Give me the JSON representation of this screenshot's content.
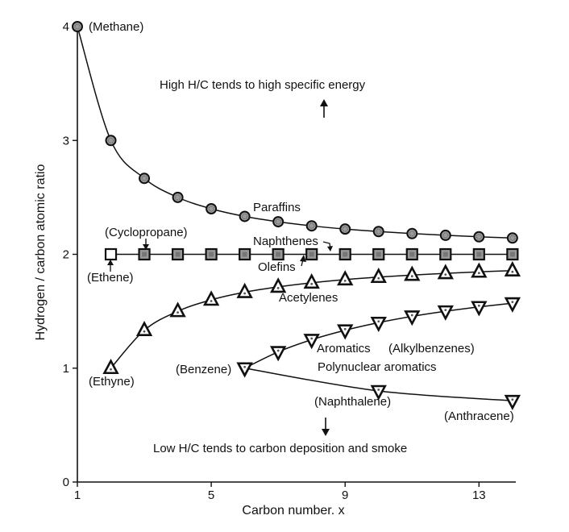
{
  "chart_data": {
    "type": "line",
    "title": "",
    "xlabel": "Carbon number. x",
    "ylabel": "Hydrogen / carbon atomic ratio",
    "xlim": [
      1,
      14.1
    ],
    "ylim": [
      0,
      4
    ],
    "xticks": [
      1,
      5,
      9,
      13
    ],
    "yticks": [
      0,
      1,
      2,
      3,
      4
    ],
    "grid": false,
    "series": [
      {
        "name": "Paraffins",
        "marker": "circle",
        "x": [
          1,
          2,
          3,
          4,
          5,
          6,
          7,
          8,
          9,
          10,
          11,
          12,
          13,
          14
        ],
        "y": [
          4.0,
          3.0,
          2.667,
          2.5,
          2.4,
          2.333,
          2.286,
          2.25,
          2.222,
          2.2,
          2.182,
          2.167,
          2.154,
          2.143
        ]
      },
      {
        "name": "Naphthenes / Olefins",
        "marker": "square",
        "x": [
          2,
          3,
          4,
          5,
          6,
          7,
          8,
          9,
          10,
          11,
          12,
          13,
          14
        ],
        "y": [
          2,
          2,
          2,
          2,
          2,
          2,
          2,
          2,
          2,
          2,
          2,
          2,
          2
        ]
      },
      {
        "name": "Acetylenes",
        "marker": "triangle-up",
        "x": [
          2,
          3,
          4,
          5,
          6,
          7,
          8,
          9,
          10,
          11,
          12,
          13,
          14
        ],
        "y": [
          1.0,
          1.333,
          1.5,
          1.6,
          1.667,
          1.714,
          1.75,
          1.778,
          1.8,
          1.818,
          1.833,
          1.846,
          1.857
        ]
      },
      {
        "name": "Aromatics (Alkylbenzenes)",
        "marker": "triangle-down",
        "x": [
          6,
          7,
          8,
          9,
          10,
          11,
          12,
          13,
          14
        ],
        "y": [
          1.0,
          1.143,
          1.25,
          1.333,
          1.4,
          1.455,
          1.5,
          1.538,
          1.571
        ]
      },
      {
        "name": "Polynuclear aromatics",
        "marker": "triangle-down",
        "x": [
          6,
          10,
          14
        ],
        "y": [
          1.0,
          0.8,
          0.714
        ]
      }
    ],
    "annotations": {
      "high": "High H/C tends to high specific energy",
      "low": "Low H/C tends to carbon deposition and smoke",
      "paraffins": "Paraffins",
      "naphthenes": "Naphthenes",
      "olefins": "Olefins",
      "acetylenes": "Acetylenes",
      "aromatics": "Aromatics",
      "alkylbenzenes": "(Alkylbenzenes)",
      "polynuclear": "Polynuclear aromatics",
      "methane": "(Methane)",
      "cyclopropane": "(Cyclopropane)",
      "ethene": "(Ethene)",
      "ethyne": "(Ethyne)",
      "benzene": "(Benzene)",
      "naphthalene": "(Naphthalene)",
      "anthracene": "(Anthracene)"
    }
  }
}
